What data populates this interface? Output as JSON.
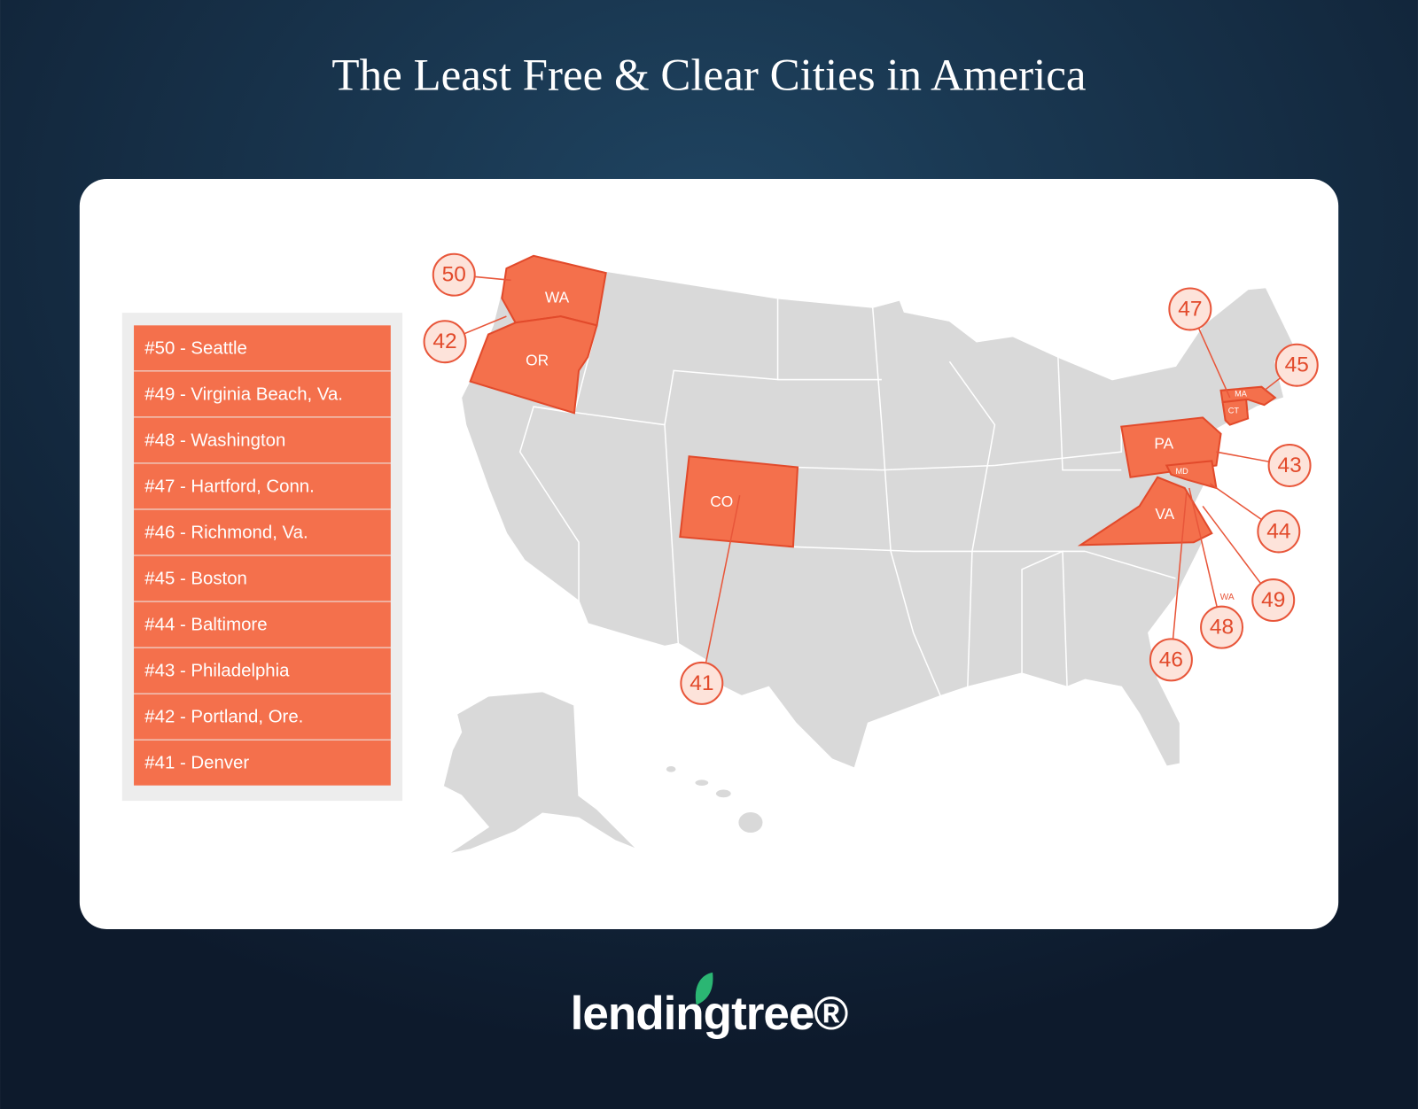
{
  "title": "The Least Free & Clear Cities in America",
  "ranking": [
    "#50 - Seattle",
    "#49 - Virginia Beach, Va.",
    "#48 - Washington",
    "#47 - Hartford, Conn.",
    "#46 - Richmond, Va.",
    "#45 - Boston",
    "#44 - Baltimore",
    "#43 - Philadelphia",
    "#42 - Portland, Ore.",
    "#41 - Denver"
  ],
  "map": {
    "state_labels": [
      "WA",
      "OR",
      "CO",
      "PA",
      "VA",
      "MD",
      "MA",
      "CT"
    ],
    "markers": [
      50,
      42,
      47,
      45,
      43,
      44,
      49,
      48,
      46,
      41
    ],
    "note_label": "WA"
  },
  "logo": "lendingtree®"
}
